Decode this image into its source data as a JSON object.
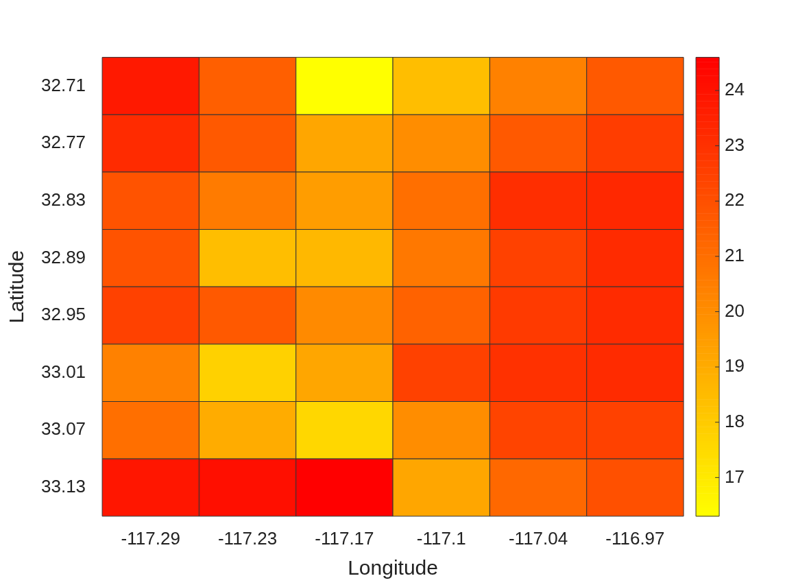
{
  "chart_data": {
    "type": "heatmap",
    "xlabel": "Longitude",
    "ylabel": "Latitude",
    "categories": [
      "-117.29",
      "-117.23",
      "-117.17",
      "-117.1",
      "-117.04",
      "-116.97"
    ],
    "y_categories": [
      "32.71",
      "32.77",
      "32.83",
      "32.89",
      "32.95",
      "33.01",
      "33.07",
      "33.13"
    ],
    "cells": [
      [
        23.8,
        21.5,
        16.3,
        18.4,
        20.4,
        21.7
      ],
      [
        23.2,
        21.7,
        19.2,
        20.0,
        21.7,
        22.6
      ],
      [
        21.9,
        20.6,
        19.5,
        21.0,
        23.1,
        23.3
      ],
      [
        21.9,
        18.4,
        18.6,
        20.7,
        22.5,
        23.2
      ],
      [
        22.5,
        21.7,
        20.1,
        21.4,
        22.7,
        23.2
      ],
      [
        20.4,
        17.8,
        19.2,
        22.5,
        23.0,
        23.2
      ],
      [
        21.0,
        19.0,
        17.6,
        20.0,
        22.4,
        22.5
      ],
      [
        23.9,
        24.1,
        24.6,
        19.2,
        21.2,
        22.0
      ]
    ],
    "clim": [
      16.3,
      24.6
    ],
    "cticks": [
      17,
      18,
      19,
      20,
      21,
      22,
      23,
      24
    ]
  }
}
